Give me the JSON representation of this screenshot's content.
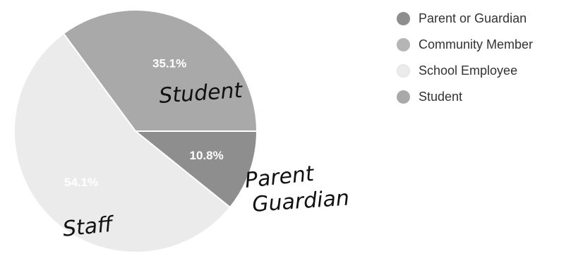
{
  "chart_data": {
    "type": "pie",
    "legend_position": "right",
    "categories": [
      "Parent or Guardian",
      "Community Member",
      "School Employee",
      "Student"
    ],
    "values": [
      10.8,
      0,
      54.1,
      35.1
    ],
    "value_labels": [
      "10.8%",
      "",
      "54.1%",
      "35.1%"
    ],
    "colors": [
      "#8e8e8e",
      "#b5b5b5",
      "#ebebeb",
      "#a9a9a9"
    ],
    "handwritten_annotations": [
      {
        "text": "Student",
        "slice": "Student"
      },
      {
        "text": "Parent",
        "slice": "Parent or Guardian"
      },
      {
        "text": "Guardian",
        "slice": "Parent or Guardian"
      },
      {
        "text": "Staff",
        "slice": "School Employee"
      }
    ]
  }
}
